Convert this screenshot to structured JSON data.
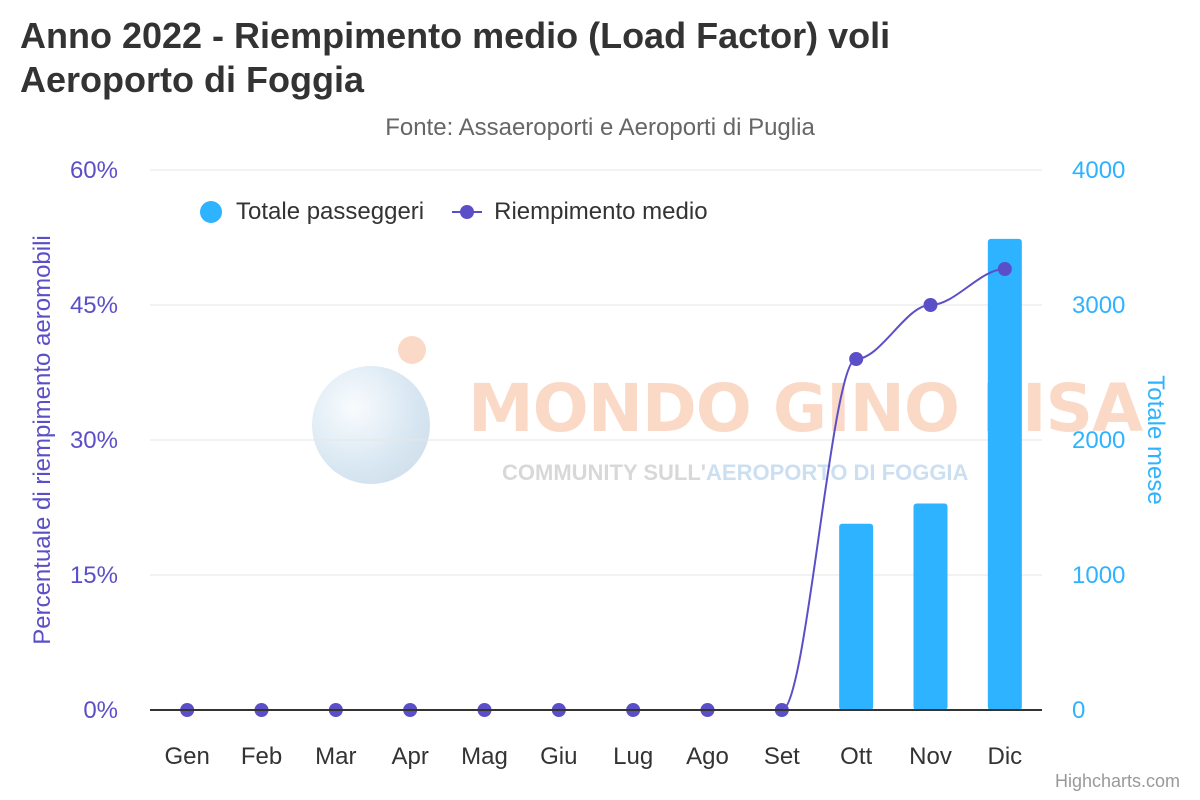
{
  "chart_data": {
    "type": "bar+line",
    "title": "Anno 2022 - Riempimento medio (Load Factor) voli Aeroporto di Foggia",
    "subtitle": "Fonte: Assaeroporti e Aeroporti di Puglia",
    "categories": [
      "Gen",
      "Feb",
      "Mar",
      "Apr",
      "Mag",
      "Giu",
      "Lug",
      "Ago",
      "Set",
      "Ott",
      "Nov",
      "Dic"
    ],
    "series": [
      {
        "name": "Totale passeggeri",
        "type": "bar",
        "axis": "right",
        "color": "#2db3ff",
        "values": [
          0,
          0,
          0,
          0,
          0,
          0,
          0,
          0,
          0,
          1380,
          1530,
          3490
        ]
      },
      {
        "name": "Riempimento medio",
        "type": "line",
        "axis": "left",
        "color": "#5b4fc7",
        "values": [
          0,
          0,
          0,
          0,
          0,
          0,
          0,
          0,
          0,
          39,
          45,
          49
        ]
      }
    ],
    "y_left": {
      "label": "Percentuale di riempimento aeromobili",
      "min": 0,
      "max": 60,
      "ticks": [
        "0%",
        "15%",
        "30%",
        "45%",
        "60%"
      ],
      "tick_values": [
        0,
        15,
        30,
        45,
        60
      ],
      "color": "#5b4fc7"
    },
    "y_right": {
      "label": "Totale mese",
      "min": 0,
      "max": 4000,
      "ticks": [
        "0",
        "1000",
        "2000",
        "3000",
        "4000"
      ],
      "tick_values": [
        0,
        1000,
        2000,
        3000,
        4000
      ],
      "color": "#2db3ff"
    },
    "grid": true,
    "legend_position": "top-left"
  },
  "watermark": {
    "line1_a": "MONDO ",
    "line1_b": "GINO LISA",
    "line2_a": "COMMUNITY SULL'",
    "line2_b": "AEROPORTO DI FOGGIA"
  },
  "credits": "Highcharts.com"
}
